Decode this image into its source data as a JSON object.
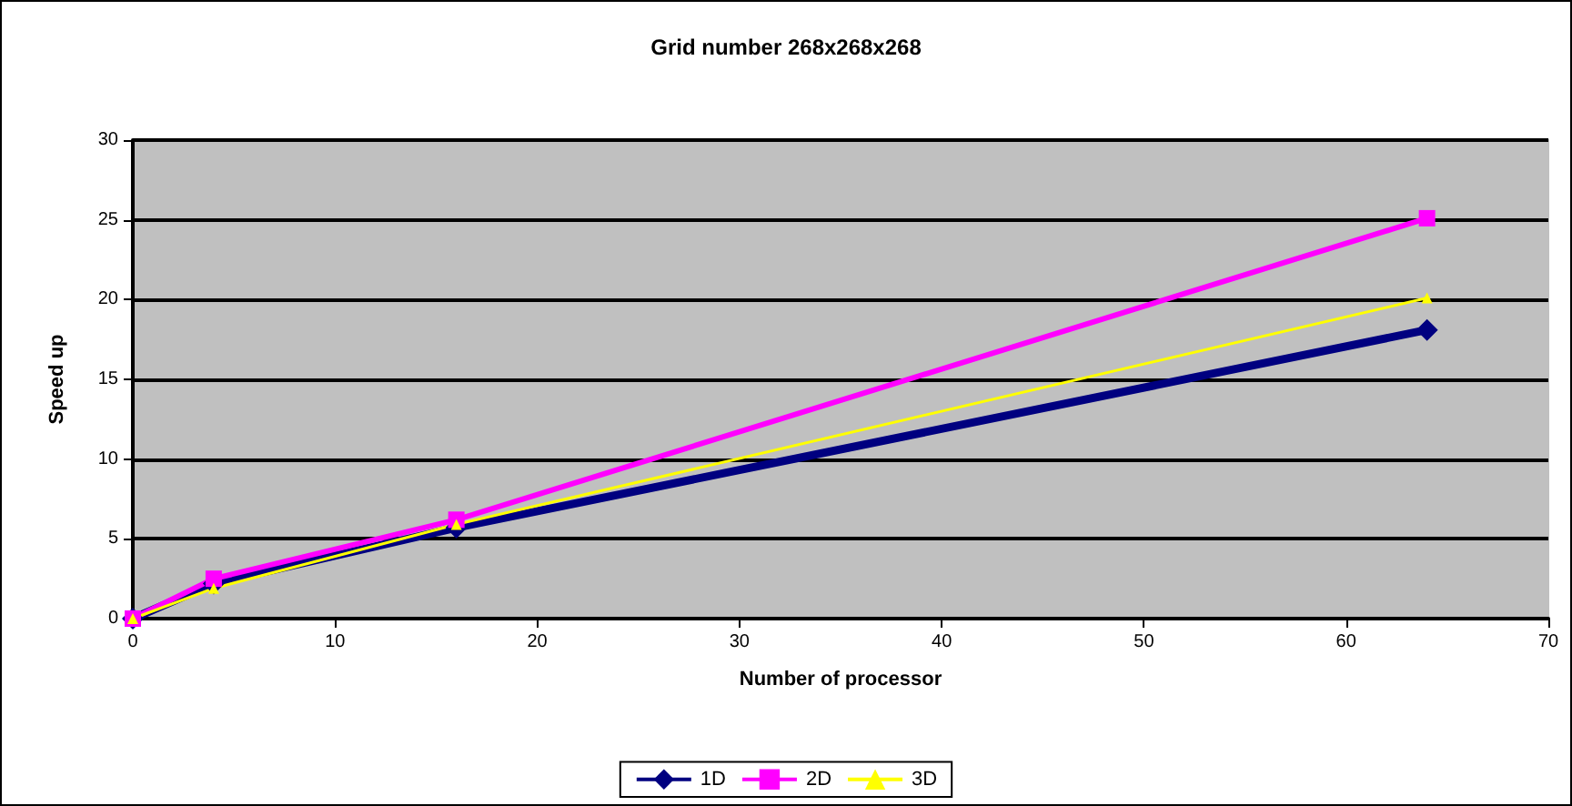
{
  "chart_data": {
    "type": "line",
    "title": "Grid number 268x268x268",
    "xlabel": "Number of processor",
    "ylabel": "Speed up",
    "x": [
      0,
      4,
      16,
      64
    ],
    "series": [
      {
        "name": "1D",
        "color": "#000080",
        "marker": "diamond",
        "values": [
          0,
          2.2,
          5.7,
          18.1
        ]
      },
      {
        "name": "2D",
        "color": "#ff00ff",
        "marker": "square",
        "values": [
          0,
          2.5,
          6.2,
          25.1
        ]
      },
      {
        "name": "3D",
        "color": "#ffff00",
        "marker": "triangle",
        "values": [
          0,
          1.9,
          5.9,
          20.1
        ]
      }
    ],
    "xlim": [
      0,
      70
    ],
    "xticks": [
      0,
      10,
      20,
      30,
      40,
      50,
      60,
      70
    ],
    "ylim": [
      0,
      30
    ],
    "yticks": [
      0,
      5,
      10,
      15,
      20,
      25,
      30
    ],
    "grid": "y",
    "legend": "bottom",
    "line_style": "solid"
  }
}
